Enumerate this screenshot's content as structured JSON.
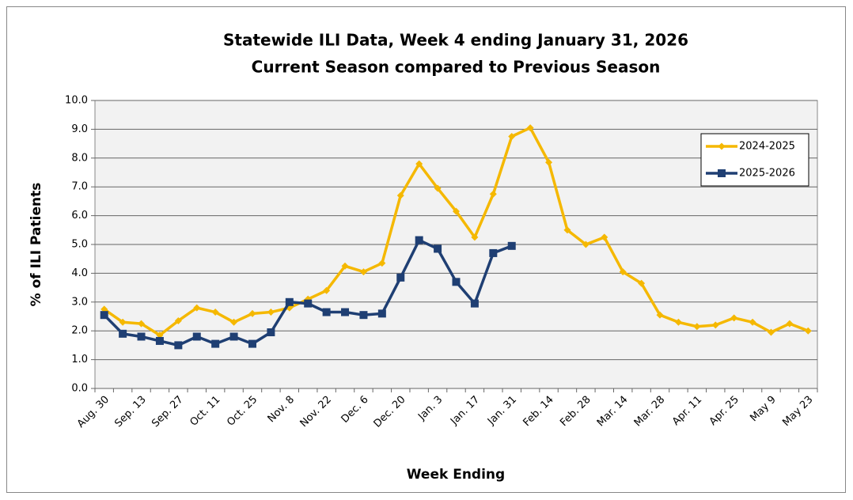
{
  "chart_data": {
    "type": "line",
    "title": "Statewide ILI Data, Week 4 ending January 31, 2026",
    "subtitle": "Current Season compared to Previous Season",
    "x_label": "Week Ending",
    "y_label": "% of ILI Patients",
    "categories": [
      "Aug. 30",
      null,
      "Sep. 13",
      null,
      "Sep. 27",
      null,
      "Oct. 11",
      null,
      "Oct. 25",
      null,
      "Nov. 8",
      null,
      "Nov. 22",
      null,
      "Dec. 6",
      null,
      "Dec. 20",
      null,
      "Jan. 3",
      null,
      "Jan. 17",
      null,
      "Jan. 31",
      null,
      "Feb. 14",
      null,
      "Feb. 28",
      null,
      "Mar. 14",
      null,
      "Mar. 28",
      null,
      "Apr. 11",
      null,
      "Apr. 25",
      null,
      "May 9",
      null,
      "May 23"
    ],
    "series": [
      {
        "name": "2024-2025",
        "color": "#f5b800",
        "marker": "diamond",
        "values": [
          2.75,
          2.3,
          2.25,
          1.85,
          2.35,
          2.8,
          2.65,
          2.3,
          2.6,
          2.65,
          2.8,
          3.1,
          3.4,
          4.25,
          4.05,
          4.35,
          6.7,
          7.8,
          6.95,
          6.15,
          5.25,
          6.75,
          8.75,
          9.05,
          7.85,
          5.5,
          5.0,
          5.25,
          4.05,
          3.65,
          2.55,
          2.3,
          2.15,
          2.2,
          2.45,
          2.3,
          1.95,
          2.25,
          2.0
        ]
      },
      {
        "name": "2025-2026",
        "color": "#1f3f73",
        "marker": "square",
        "values": [
          2.55,
          1.9,
          1.8,
          1.65,
          1.5,
          1.8,
          1.55,
          1.8,
          1.55,
          1.95,
          3.0,
          2.95,
          2.65,
          2.65,
          2.55,
          2.6,
          3.85,
          5.15,
          4.85,
          3.7,
          2.95,
          4.7,
          4.95,
          null,
          null,
          null,
          null,
          null,
          null,
          null,
          null,
          null,
          null,
          null,
          null,
          null,
          null,
          null,
          null
        ]
      }
    ],
    "ylim": [
      0,
      10
    ],
    "yticks": [
      {
        "value": 0,
        "label": "0.0"
      },
      {
        "value": 1,
        "label": "1.0"
      },
      {
        "value": 2,
        "label": "2.0"
      },
      {
        "value": 3,
        "label": "3.0"
      },
      {
        "value": 4,
        "label": "4.0"
      },
      {
        "value": 5,
        "label": "5.0"
      },
      {
        "value": 6,
        "label": "6.0"
      },
      {
        "value": 7,
        "label": "7.0"
      },
      {
        "value": 8,
        "label": "8.0"
      },
      {
        "value": 9,
        "label": "9.0"
      },
      {
        "value": 10,
        "label": "10.0"
      }
    ],
    "grid": true,
    "legend": "upper right"
  }
}
